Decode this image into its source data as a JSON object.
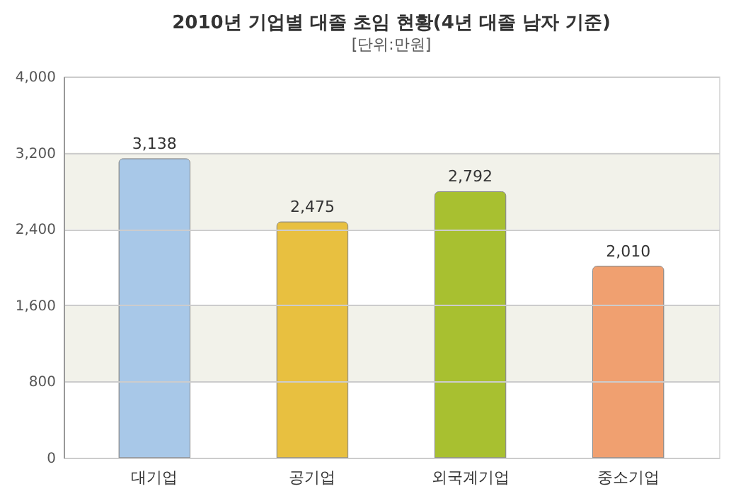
{
  "chart_data": {
    "type": "bar",
    "title": "2010년 기업별 대졸 초임 현황(4년 대졸 남자 기준)",
    "subtitle": "[단위:만원]",
    "categories": [
      "대기업",
      "공기업",
      "외국계기업",
      "중소기업"
    ],
    "values": [
      3138,
      2475,
      2792,
      2010
    ],
    "colors": [
      "#a8c8e8",
      "#e8c040",
      "#a8c030",
      "#f0a070"
    ],
    "ylim": [
      0,
      4000
    ],
    "yticks": [
      {
        "value": 0,
        "label": "0"
      },
      {
        "value": 800,
        "label": "800"
      },
      {
        "value": 1600,
        "label": "1,600"
      },
      {
        "value": 2400,
        "label": "2,400"
      },
      {
        "value": 3200,
        "label": "3,200"
      },
      {
        "value": 4000,
        "label": "4,000"
      }
    ],
    "value_labels": [
      "3,138",
      "2,475",
      "2,792",
      "2,010"
    ],
    "bands": [
      {
        "axis": "y",
        "from": 800,
        "to": 1600,
        "color": "#f2f2ea"
      },
      {
        "axis": "y",
        "from": 2400,
        "to": 3200,
        "color": "#f2f2ea"
      }
    ],
    "grid": "y"
  }
}
